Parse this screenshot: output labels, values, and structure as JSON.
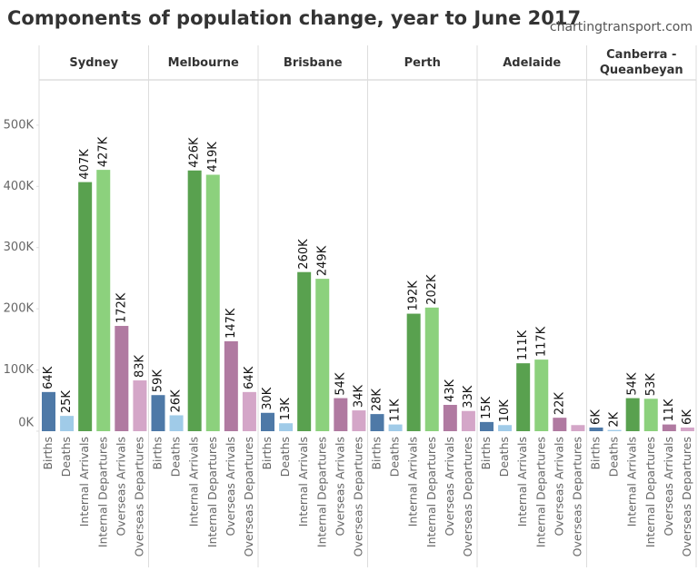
{
  "title": "Components of population change, year to June 2017",
  "credit": "chartingtransport.com",
  "chart_data": [
    {
      "type": "bar",
      "title": "Sydney",
      "categories": [
        "Births",
        "Deaths",
        "Internal Arrivals",
        "Internal Departures",
        "Overseas Arrivals",
        "Overseas Departures"
      ],
      "values": [
        64000,
        25000,
        407000,
        427000,
        172000,
        83000
      ],
      "value_labels": [
        "64K",
        "25K",
        "407K",
        "427K",
        "172K",
        "83K"
      ],
      "colors": [
        "#4e79a7",
        "#a0cbe8",
        "#59a14f",
        "#8cd17d",
        "#b07aa1",
        "#d4a6c8"
      ],
      "ylim": [
        0,
        574000
      ],
      "yticks": [
        {
          "value": 0,
          "label": "0K"
        },
        {
          "value": 100000,
          "label": "100K"
        },
        {
          "value": 200000,
          "label": "200K"
        },
        {
          "value": 300000,
          "label": "300K"
        },
        {
          "value": 400000,
          "label": "400K"
        },
        {
          "value": 500000,
          "label": "500K"
        }
      ]
    },
    {
      "type": "bar",
      "title": "Melbourne",
      "categories": [
        "Births",
        "Deaths",
        "Internal Arrivals",
        "Internal Departures",
        "Overseas Arrivals",
        "Overseas Departures"
      ],
      "values": [
        59000,
        26000,
        426000,
        419000,
        147000,
        64000
      ],
      "value_labels": [
        "59K",
        "26K",
        "426K",
        "419K",
        "147K",
        "64K"
      ],
      "colors": [
        "#4e79a7",
        "#a0cbe8",
        "#59a14f",
        "#8cd17d",
        "#b07aa1",
        "#d4a6c8"
      ]
    },
    {
      "type": "bar",
      "title": "Brisbane",
      "categories": [
        "Births",
        "Deaths",
        "Internal Arrivals",
        "Internal Departures",
        "Overseas Arrivals",
        "Overseas Departures"
      ],
      "values": [
        30000,
        13000,
        260000,
        249000,
        54000,
        34000
      ],
      "value_labels": [
        "30K",
        "13K",
        "260K",
        "249K",
        "54K",
        "34K"
      ],
      "colors": [
        "#4e79a7",
        "#a0cbe8",
        "#59a14f",
        "#8cd17d",
        "#b07aa1",
        "#d4a6c8"
      ]
    },
    {
      "type": "bar",
      "title": "Perth",
      "categories": [
        "Births",
        "Deaths",
        "Internal Arrivals",
        "Internal Departures",
        "Overseas Arrivals",
        "Overseas Departures"
      ],
      "values": [
        28000,
        11000,
        192000,
        202000,
        43000,
        33000
      ],
      "value_labels": [
        "28K",
        "11K",
        "192K",
        "202K",
        "43K",
        "33K"
      ],
      "colors": [
        "#4e79a7",
        "#a0cbe8",
        "#59a14f",
        "#8cd17d",
        "#b07aa1",
        "#d4a6c8"
      ]
    },
    {
      "type": "bar",
      "title": "Adelaide",
      "categories": [
        "Births",
        "Deaths",
        "Internal Arrivals",
        "Internal Departures",
        "Overseas Arrivals",
        "Overseas Departures"
      ],
      "values": [
        15000,
        10000,
        111000,
        117000,
        22000,
        10000
      ],
      "value_labels": [
        "15K",
        "10K",
        "111K",
        "117K",
        "22K",
        null
      ],
      "colors": [
        "#4e79a7",
        "#a0cbe8",
        "#59a14f",
        "#8cd17d",
        "#b07aa1",
        "#d4a6c8"
      ]
    },
    {
      "type": "bar",
      "title": "Canberra - Queanbeyan",
      "categories": [
        "Births",
        "Deaths",
        "Internal Arrivals",
        "Internal Departures",
        "Overseas Arrivals",
        "Overseas Departures"
      ],
      "values": [
        6000,
        2000,
        54000,
        53000,
        11000,
        6000
      ],
      "value_labels": [
        "6K",
        "2K",
        "54K",
        "53K",
        "11K",
        "6K"
      ],
      "colors": [
        "#4e79a7",
        "#a0cbe8",
        "#59a14f",
        "#8cd17d",
        "#b07aa1",
        "#d4a6c8"
      ]
    }
  ]
}
